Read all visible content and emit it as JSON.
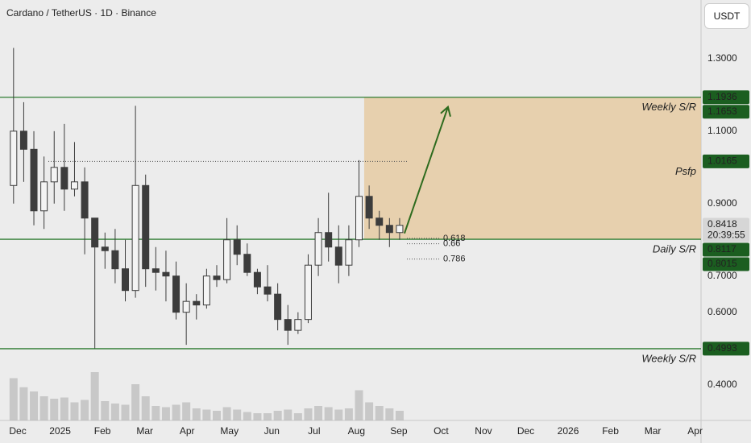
{
  "chart_data": {
    "type": "candlestick",
    "title": "Cardano / TetherUS · 1D · Binance",
    "currency_button": "USDT",
    "colors": {
      "up": "#f4f4f4",
      "down": "#3c3c3c",
      "wick": "#3c3c3c",
      "volume": "#b9b9b9",
      "level": "#2e7d32",
      "zone": "#e6c79a",
      "arrow": "#2e6b1e",
      "label_bg": "#1b5e20",
      "price_bg": "#d6d6d6"
    },
    "xlim": [
      -0.42,
      16.14
    ],
    "xticks": [
      {
        "value": 0,
        "label": "Dec"
      },
      {
        "value": 1,
        "label": "2025"
      },
      {
        "value": 2,
        "label": "Feb"
      },
      {
        "value": 3,
        "label": "Mar"
      },
      {
        "value": 4,
        "label": "Apr"
      },
      {
        "value": 5,
        "label": "May"
      },
      {
        "value": 6,
        "label": "Jun"
      },
      {
        "value": 7,
        "label": "Jul"
      },
      {
        "value": 8,
        "label": "Aug"
      },
      {
        "value": 9,
        "label": "Sep"
      },
      {
        "value": 10,
        "label": "Oct"
      },
      {
        "value": 11,
        "label": "Nov"
      },
      {
        "value": 12,
        "label": "Dec"
      },
      {
        "value": 13,
        "label": "2026"
      },
      {
        "value": 14,
        "label": "Feb"
      },
      {
        "value": 15,
        "label": "Mar"
      },
      {
        "value": 16,
        "label": "Apr"
      }
    ],
    "ylim": [
      0.3012,
      1.4622
    ],
    "yticks": [
      {
        "value": 1.3,
        "label": "1.3000"
      },
      {
        "value": 1.1,
        "label": "1.1000"
      },
      {
        "value": 0.9,
        "label": "0.9000"
      },
      {
        "value": 0.7,
        "label": "0.7000"
      },
      {
        "value": 0.6,
        "label": "0.6000"
      },
      {
        "value": 0.4,
        "label": "0.4000"
      }
    ],
    "x": [
      -0.1,
      0.14,
      0.38,
      0.62,
      0.86,
      1.1,
      1.34,
      1.58,
      1.82,
      2.06,
      2.3,
      2.54,
      2.78,
      3.02,
      3.26,
      3.5,
      3.74,
      3.98,
      4.22,
      4.46,
      4.7,
      4.94,
      5.18,
      5.42,
      5.66,
      5.9,
      6.14,
      6.38,
      6.62,
      6.86,
      7.1,
      7.34,
      7.58,
      7.82,
      8.06,
      8.3,
      8.54,
      8.78,
      9.02
    ],
    "open": [
      0.95,
      1.1,
      1.05,
      0.88,
      0.96,
      1.0,
      0.94,
      0.96,
      0.86,
      0.78,
      0.77,
      0.72,
      0.66,
      0.95,
      0.72,
      0.71,
      0.7,
      0.6,
      0.63,
      0.62,
      0.7,
      0.69,
      0.8,
      0.76,
      0.71,
      0.67,
      0.65,
      0.58,
      0.55,
      0.58,
      0.73,
      0.82,
      0.78,
      0.73,
      0.8,
      0.92,
      0.86,
      0.84,
      0.82
    ],
    "high": [
      1.33,
      1.18,
      1.1,
      1.03,
      1.1,
      1.12,
      1.07,
      1.0,
      0.86,
      0.82,
      0.83,
      0.8,
      1.17,
      0.98,
      0.78,
      0.77,
      0.74,
      0.68,
      0.65,
      0.72,
      0.73,
      0.86,
      0.84,
      0.79,
      0.72,
      0.73,
      0.68,
      0.62,
      0.6,
      0.76,
      0.86,
      0.93,
      0.84,
      0.84,
      1.02,
      0.95,
      0.88,
      0.86,
      0.86
    ],
    "low": [
      0.9,
      0.96,
      0.84,
      0.83,
      0.9,
      0.88,
      0.92,
      0.76,
      0.5,
      0.72,
      0.68,
      0.63,
      0.64,
      0.67,
      0.66,
      0.63,
      0.58,
      0.51,
      0.58,
      0.61,
      0.67,
      0.68,
      0.73,
      0.7,
      0.65,
      0.63,
      0.55,
      0.51,
      0.54,
      0.57,
      0.7,
      0.74,
      0.68,
      0.7,
      0.78,
      0.83,
      0.8,
      0.78,
      0.8
    ],
    "close": [
      1.1,
      1.05,
      0.88,
      0.96,
      1.0,
      0.94,
      0.96,
      0.86,
      0.78,
      0.77,
      0.72,
      0.66,
      0.95,
      0.72,
      0.71,
      0.7,
      0.6,
      0.63,
      0.62,
      0.7,
      0.69,
      0.8,
      0.76,
      0.71,
      0.67,
      0.65,
      0.58,
      0.55,
      0.58,
      0.73,
      0.82,
      0.78,
      0.73,
      0.8,
      0.92,
      0.86,
      0.84,
      0.82,
      0.84
    ],
    "volume": [
      70,
      55,
      48,
      40,
      36,
      38,
      30,
      34,
      80,
      32,
      28,
      26,
      60,
      40,
      24,
      22,
      26,
      30,
      20,
      18,
      16,
      22,
      18,
      14,
      12,
      12,
      16,
      18,
      12,
      20,
      24,
      22,
      18,
      20,
      50,
      30,
      24,
      20,
      16
    ],
    "levels": [
      {
        "label": "Weekly S/R",
        "price": 1.1936,
        "style": "solid"
      },
      {
        "label": "Psfp",
        "price": 1.0165,
        "style": "dotted"
      },
      {
        "label": "Daily S/R",
        "price": 0.8015,
        "style": "solid"
      },
      {
        "label": "Weekly S/R",
        "price": 0.4993,
        "style": "solid"
      }
    ],
    "fib_levels": [
      {
        "label": "0.618",
        "price": 0.804
      },
      {
        "label": "0.66",
        "price": 0.789
      },
      {
        "label": "0.786",
        "price": 0.747
      }
    ],
    "price_labels": [
      {
        "label": "1.1936",
        "price": 1.1936
      },
      {
        "label": "1.1653",
        "price": 1.1653
      },
      {
        "label": "1.0165",
        "price": 1.0165
      },
      {
        "label": "0.8418",
        "price": 0.8418,
        "countdown": "20:39:55"
      },
      {
        "label": "0.8117",
        "price": 0.8117
      },
      {
        "label": "0.8015",
        "price": 0.8015
      },
      {
        "label": "0.4993",
        "price": 0.4993
      }
    ]
  }
}
